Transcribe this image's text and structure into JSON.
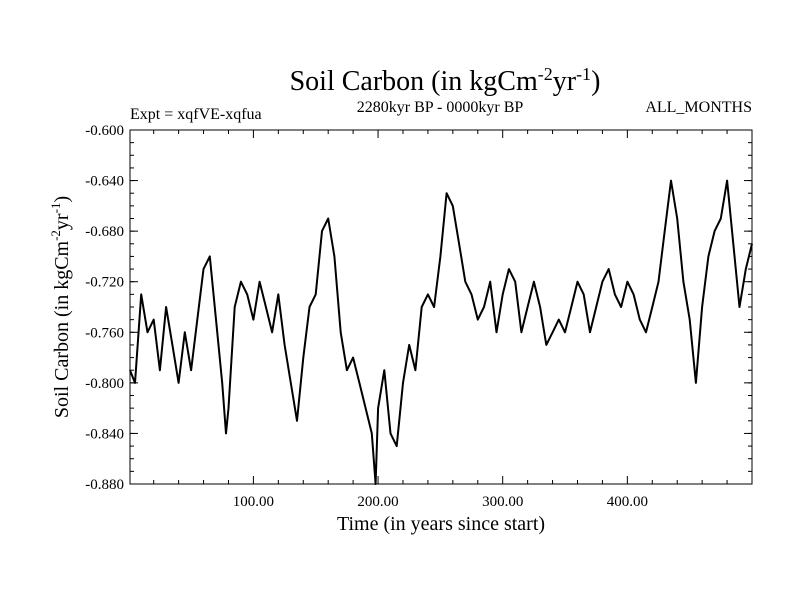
{
  "chart_data": {
    "type": "line",
    "title": {
      "main": "Soil Carbon (in kgCm",
      "sup1": "-2",
      "mid": "yr",
      "sup2": "-1",
      "end": ")"
    },
    "subtitle_left": "Expt = xqfVE-xqfua",
    "subtitle_center": "2280kyr BP - 0000kyr BP",
    "subtitle_right": "ALL_MONTHS",
    "xlabel": "Time (in years since start)",
    "ylabel": {
      "main": "Soil Carbon (in kgCm",
      "sup1": "-2",
      "mid": "yr",
      "sup2": "-1",
      "end": ")"
    },
    "xlim": [
      1,
      500
    ],
    "ylim": [
      -0.88,
      -0.6
    ],
    "xticks": [
      {
        "value": 100,
        "label": "100.00"
      },
      {
        "value": 200,
        "label": "200.00"
      },
      {
        "value": 300,
        "label": "300.00"
      },
      {
        "value": 400,
        "label": "400.00"
      }
    ],
    "yticks": [
      {
        "value": -0.6,
        "label": "-0.600"
      },
      {
        "value": -0.64,
        "label": "-0.640"
      },
      {
        "value": -0.68,
        "label": "-0.680"
      },
      {
        "value": -0.72,
        "label": "-0.720"
      },
      {
        "value": -0.76,
        "label": "-0.760"
      },
      {
        "value": -0.8,
        "label": "-0.800"
      },
      {
        "value": -0.84,
        "label": "-0.840"
      },
      {
        "value": -0.88,
        "label": "-0.880"
      }
    ],
    "series": [
      {
        "name": "Soil Carbon",
        "x": [
          1,
          5,
          10,
          15,
          20,
          25,
          30,
          35,
          40,
          45,
          50,
          55,
          60,
          65,
          70,
          75,
          78,
          80,
          85,
          90,
          95,
          100,
          105,
          110,
          115,
          120,
          125,
          130,
          135,
          140,
          145,
          150,
          155,
          160,
          165,
          170,
          175,
          180,
          185,
          190,
          195,
          198,
          200,
          205,
          210,
          215,
          220,
          225,
          230,
          235,
          240,
          245,
          250,
          255,
          260,
          265,
          270,
          275,
          280,
          285,
          290,
          295,
          300,
          305,
          310,
          315,
          320,
          325,
          330,
          335,
          340,
          345,
          350,
          355,
          360,
          365,
          370,
          375,
          380,
          385,
          390,
          395,
          400,
          405,
          410,
          415,
          420,
          425,
          430,
          435,
          440,
          445,
          450,
          455,
          460,
          465,
          470,
          475,
          480,
          485,
          490,
          495,
          500
        ],
        "y": [
          -0.79,
          -0.8,
          -0.73,
          -0.76,
          -0.75,
          -0.79,
          -0.74,
          -0.77,
          -0.8,
          -0.76,
          -0.79,
          -0.75,
          -0.71,
          -0.7,
          -0.75,
          -0.8,
          -0.84,
          -0.82,
          -0.74,
          -0.72,
          -0.73,
          -0.75,
          -0.72,
          -0.74,
          -0.76,
          -0.73,
          -0.77,
          -0.8,
          -0.83,
          -0.78,
          -0.74,
          -0.73,
          -0.68,
          -0.67,
          -0.7,
          -0.76,
          -0.79,
          -0.78,
          -0.8,
          -0.82,
          -0.84,
          -0.88,
          -0.82,
          -0.79,
          -0.84,
          -0.85,
          -0.8,
          -0.77,
          -0.79,
          -0.74,
          -0.73,
          -0.74,
          -0.7,
          -0.65,
          -0.66,
          -0.69,
          -0.72,
          -0.73,
          -0.75,
          -0.74,
          -0.72,
          -0.76,
          -0.73,
          -0.71,
          -0.72,
          -0.76,
          -0.74,
          -0.72,
          -0.74,
          -0.77,
          -0.76,
          -0.75,
          -0.76,
          -0.74,
          -0.72,
          -0.73,
          -0.76,
          -0.74,
          -0.72,
          -0.71,
          -0.73,
          -0.74,
          -0.72,
          -0.73,
          -0.75,
          -0.76,
          -0.74,
          -0.72,
          -0.68,
          -0.64,
          -0.67,
          -0.72,
          -0.75,
          -0.8,
          -0.74,
          -0.7,
          -0.68,
          -0.67,
          -0.64,
          -0.69,
          -0.74,
          -0.71,
          -0.69
        ]
      }
    ]
  }
}
